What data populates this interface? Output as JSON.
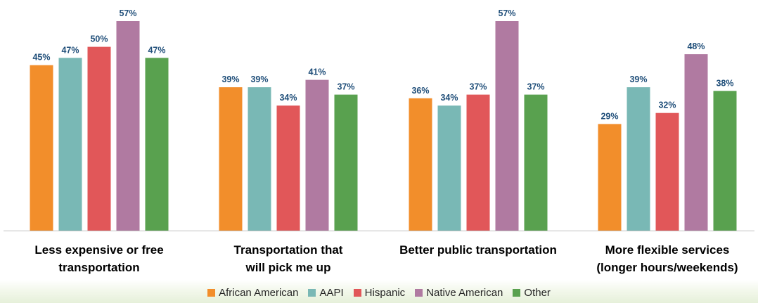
{
  "chart_data": {
    "type": "bar",
    "categories": [
      [
        "Less expensive or free",
        "transportation"
      ],
      [
        "Transportation that",
        "will pick me up"
      ],
      [
        "Better public transportation"
      ],
      [
        "More flexible services",
        "(longer hours/weekends)"
      ]
    ],
    "series": [
      {
        "name": "African American",
        "color": "#f28e2b",
        "values": [
          45,
          39,
          36,
          29
        ]
      },
      {
        "name": "AAPI",
        "color": "#79b8b5",
        "values": [
          47,
          39,
          34,
          39
        ]
      },
      {
        "name": "Hispanic",
        "color": "#e15759",
        "values": [
          50,
          34,
          37,
          32
        ]
      },
      {
        "name": "Native American",
        "color": "#b07aa1",
        "values": [
          57,
          41,
          57,
          48
        ]
      },
      {
        "name": "Other",
        "color": "#59a14f",
        "values": [
          47,
          37,
          37,
          38
        ]
      }
    ],
    "value_suffix": "%",
    "ylim": [
      0,
      57
    ],
    "grid": false,
    "legend_position": "bottom",
    "label_color": "#1f4e79",
    "axis_color": "#bfbfbf"
  }
}
